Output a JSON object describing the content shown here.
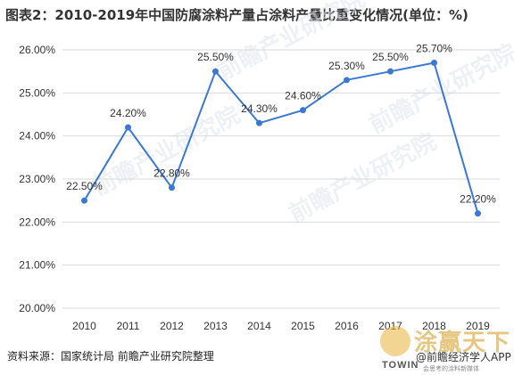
{
  "title": "图表2：2010-2019年中国防腐涂料产量占涂料产量比重变化情况(单位：%)",
  "source": "资料来源：国家统计局 前瞻产业研究院整理",
  "watermark": "前瞻产业研究院",
  "brand": {
    "name_cn": "涂赢天下",
    "towin": "TOWIN",
    "app": "@前瞻经济学人APP",
    "slogan": "会思考的涂料新媒体"
  },
  "colors": {
    "line": "#3a78d6",
    "grid": "#d9d9d9",
    "text": "#333333"
  },
  "chart_data": {
    "type": "line",
    "categories": [
      "2010",
      "2011",
      "2012",
      "2013",
      "2014",
      "2015",
      "2016",
      "2017",
      "2018",
      "2019"
    ],
    "series": [
      {
        "values": [
          22.5,
          24.2,
          22.8,
          25.5,
          24.3,
          24.6,
          25.3,
          25.5,
          25.7,
          22.2
        ]
      }
    ],
    "data_labels": [
      "22.50%",
      "24.20%",
      "22.80%",
      "25.50%",
      "24.30%",
      "24.60%",
      "25.30%",
      "25.50%",
      "25.70%",
      "22.20%"
    ],
    "ylim": [
      20,
      26
    ],
    "yticks": [
      20,
      21,
      22,
      23,
      24,
      25,
      26
    ],
    "ytick_labels": [
      "20.00%",
      "21.00%",
      "22.00%",
      "23.00%",
      "24.00%",
      "25.00%",
      "26.00%"
    ],
    "grid": true,
    "legend": "none"
  }
}
